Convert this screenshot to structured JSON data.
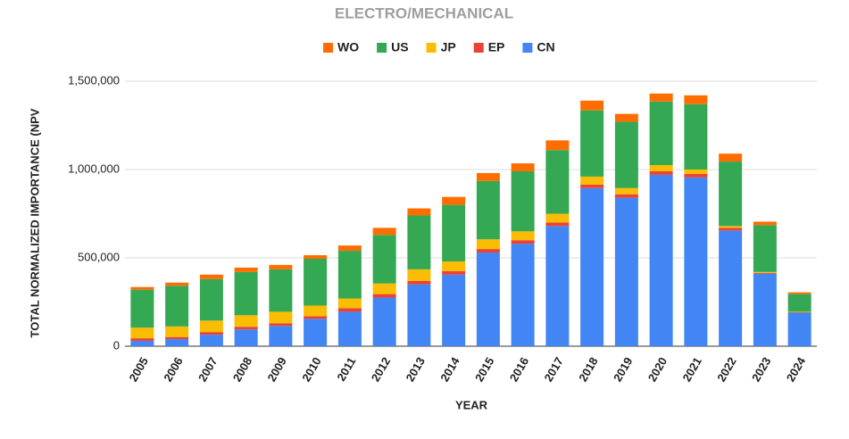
{
  "chart_data": {
    "type": "stacked_bar",
    "title": "ELECTRO/MECHANICAL",
    "x_label": "YEAR",
    "y_label": "TOTAL NORMALIZED IMPORTANCE (NPV",
    "categories": [
      "2005",
      "2006",
      "2007",
      "2008",
      "2009",
      "2010",
      "2011",
      "2012",
      "2013",
      "2014",
      "2015",
      "2016",
      "2017",
      "2018",
      "2019",
      "2020",
      "2021",
      "2022",
      "2023",
      "2024"
    ],
    "series": [
      {
        "name": "CN",
        "color": "#4285f4",
        "values": [
          30000,
          40000,
          65000,
          95000,
          115000,
          155000,
          195000,
          275000,
          350000,
          405000,
          530000,
          580000,
          680000,
          895000,
          840000,
          970000,
          955000,
          655000,
          410000,
          190000
        ]
      },
      {
        "name": "EP",
        "color": "#ea4335",
        "values": [
          15000,
          12000,
          15000,
          15000,
          15000,
          15000,
          20000,
          20000,
          20000,
          20000,
          20000,
          20000,
          20000,
          20000,
          20000,
          20000,
          20000,
          15000,
          5000,
          2000
        ]
      },
      {
        "name": "JP",
        "color": "#fbbc04",
        "values": [
          60000,
          60000,
          65000,
          65000,
          65000,
          60000,
          55000,
          60000,
          65000,
          55000,
          55000,
          50000,
          50000,
          45000,
          35000,
          35000,
          25000,
          10000,
          5000,
          3000
        ]
      },
      {
        "name": "US",
        "color": "#34a853",
        "values": [
          215000,
          230000,
          235000,
          245000,
          240000,
          265000,
          270000,
          275000,
          305000,
          320000,
          330000,
          340000,
          360000,
          375000,
          375000,
          360000,
          370000,
          365000,
          265000,
          100000
        ]
      },
      {
        "name": "WO",
        "color": "#ff6d01",
        "values": [
          15000,
          18000,
          25000,
          25000,
          25000,
          20000,
          30000,
          40000,
          40000,
          45000,
          45000,
          45000,
          55000,
          55000,
          45000,
          45000,
          50000,
          45000,
          20000,
          10000
        ]
      }
    ],
    "ylim": [
      0,
      1500000
    ],
    "yticks": [
      0,
      {
        "value": 500000,
        "label": "500,000"
      },
      {
        "value": 1000000,
        "label": "1,000,000"
      },
      {
        "value": 1500000,
        "label": "1,500,000"
      }
    ],
    "grid": true,
    "legend": "top"
  }
}
